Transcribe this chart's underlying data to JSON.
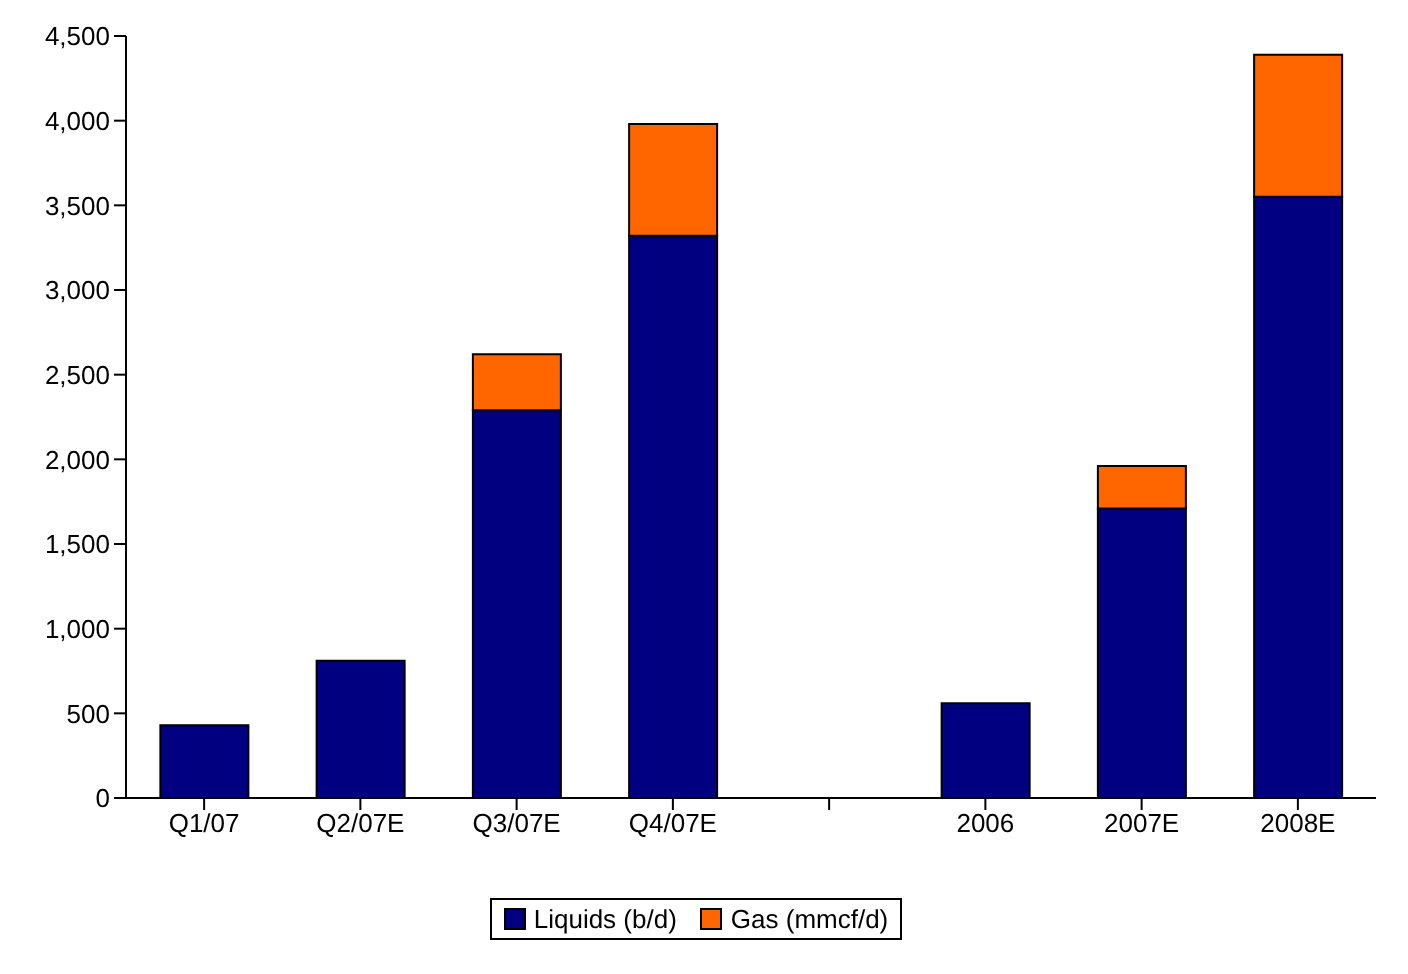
{
  "chart_data": {
    "type": "bar",
    "stacked": true,
    "categories": [
      "Q1/07",
      "Q2/07E",
      "Q3/07E",
      "Q4/07E",
      null,
      "2006",
      "2007E",
      "2008E"
    ],
    "series": [
      {
        "name": "Liquids (b/d)",
        "color": "#000080",
        "values": [
          430,
          810,
          2290,
          3320,
          null,
          560,
          1710,
          3550
        ]
      },
      {
        "name": "Gas (mmcf/d)",
        "color": "#ff6600",
        "values": [
          null,
          null,
          330,
          660,
          null,
          null,
          250,
          840
        ]
      }
    ],
    "ylim": [
      0,
      4500
    ],
    "yticks": [
      {
        "value": 0,
        "label": "0"
      },
      {
        "value": 500,
        "label": "500"
      },
      {
        "value": 1000,
        "label": "1,000"
      },
      {
        "value": 1500,
        "label": "1,500"
      },
      {
        "value": 2000,
        "label": "2,000"
      },
      {
        "value": 2500,
        "label": "2,500"
      },
      {
        "value": 3000,
        "label": "3,000"
      },
      {
        "value": 3500,
        "label": "3,500"
      },
      {
        "value": 4000,
        "label": "4,000"
      },
      {
        "value": 4500,
        "label": "4,500"
      }
    ],
    "grid": false,
    "legend": "bottom"
  }
}
